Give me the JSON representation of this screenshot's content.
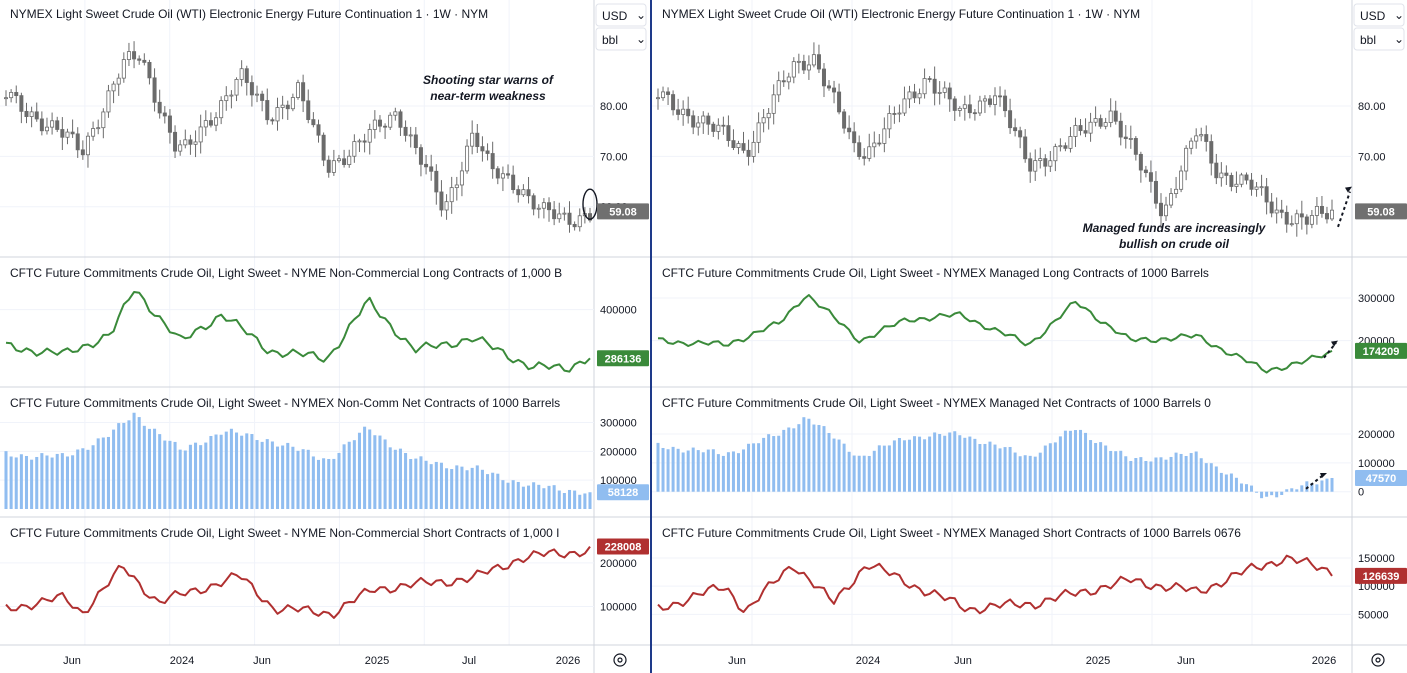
{
  "left": {
    "price_title": "NYMEX Light Sweet Crude Oil (WTI) Electronic Energy Future Continuation 1 · 1W · NYM",
    "currency": "USD",
    "unit": "bbl",
    "annotation_lines": [
      "Shooting star warns of",
      "near-term weakness"
    ],
    "last_price": "59.08",
    "price_ticks": [
      "80.00",
      "70.00",
      "60.00"
    ],
    "long_title": "CFTC Future Commitments Crude Oil, Light Sweet - NYME Non-Commercial Long Contracts of 1,000 B",
    "long_last": "286136",
    "long_ticks": [
      "400000"
    ],
    "net_title": "CFTC Future Commitments Crude Oil, Light Sweet - NYMEX Non-Comm Net Contracts of 1000 Barrels",
    "net_last": "58128",
    "net_ticks": [
      "300000",
      "200000",
      "100000"
    ],
    "short_title": "CFTC Future Commitments Crude Oil, Light Sweet - NYME Non-Commercial Short Contracts of 1,000 I",
    "short_last": "228008",
    "short_ticks": [
      "200000",
      "100000"
    ],
    "x_labels": [
      "Jun",
      "2024",
      "Jun",
      "2025",
      "Jul",
      "2026"
    ]
  },
  "right": {
    "price_title": "NYMEX Light Sweet Crude Oil (WTI) Electronic Energy Future Continuation 1 · 1W · NYM",
    "currency": "USD",
    "unit": "bbl",
    "annotation_lines": [
      "Managed funds are increasingly",
      "bullish on crude oil"
    ],
    "last_price": "59.08",
    "price_ticks": [
      "80.00",
      "70.00"
    ],
    "long_title": "CFTC Future Commitments Crude Oil, Light Sweet - NYMEX Managed Long Contracts of 1000 Barrels",
    "long_last": "174209",
    "long_ticks": [
      "300000",
      "200000"
    ],
    "net_title": "CFTC Future Commitments Crude Oil, Light Sweet - NYMEX Managed Net Contracts of 1000 Barrels 0",
    "net_last": "47570",
    "net_ticks": [
      "200000",
      "100000",
      "0"
    ],
    "short_title": "CFTC Future Commitments Crude Oil, Light Sweet - NYMEX Managed Short Contracts of 1000 Barrels 0676",
    "short_last": "126639",
    "short_ticks": [
      "150000",
      "100000",
      "50000"
    ],
    "x_labels": [
      "Jun",
      "2024",
      "Jun",
      "2025",
      "Jun",
      "2026"
    ]
  },
  "colors": {
    "candle": "#6b6b6b",
    "long_line": "#3a8a3a",
    "net_bars": "#90bdf0",
    "short_line": "#b03030",
    "price_badge": "#707070",
    "long_badge": "#3a8a3a",
    "net_badge": "#90bdf0",
    "short_badge": "#b03030",
    "divider": "#1e3a8a"
  },
  "chart_data": [
    {
      "type": "line",
      "title": "NYMEX Light Sweet Crude Oil (WTI) Electronic Energy Future Continuation 1 · 1W · NYM",
      "x": [
        "2023-04",
        "2023-06",
        "2023-07",
        "2023-09",
        "2023-10",
        "2023-12",
        "2024-01",
        "2024-04",
        "2024-06",
        "2024-07",
        "2024-09",
        "2024-10",
        "2025-01",
        "2025-03",
        "2025-04",
        "2025-06",
        "2025-07",
        "2025-09",
        "2025-10",
        "2025-12",
        "2026-01"
      ],
      "values": [
        82,
        74,
        71,
        88,
        90,
        72,
        71,
        86,
        78,
        83,
        68,
        72,
        79,
        67,
        59,
        75,
        67,
        64,
        59,
        57,
        59.08
      ],
      "ylabel": "USD/bbl"
    },
    {
      "type": "line",
      "title": "CFTC Future Commitments Crude Oil, Light Sweet - NYME Non-Commercial Long Contracts of 1,000 B",
      "x": [
        "2023-04",
        "2023-06",
        "2023-09",
        "2023-10",
        "2024-01",
        "2024-04",
        "2024-06",
        "2024-10",
        "2025-01",
        "2025-04",
        "2025-07",
        "2025-10",
        "2026-01"
      ],
      "values": [
        310000,
        290000,
        340000,
        450000,
        320000,
        390000,
        300000,
        280000,
        420000,
        300000,
        330000,
        260000,
        286136
      ]
    },
    {
      "type": "bar",
      "title": "CFTC Future Commitments Crude Oil, Light Sweet - NYMEX Non-Comm Net Contracts of 1000 Barrels",
      "x": [
        "2023-04",
        "2023-06",
        "2023-09",
        "2023-10",
        "2024-01",
        "2024-04",
        "2024-07",
        "2024-10",
        "2025-01",
        "2025-04",
        "2025-07",
        "2025-10",
        "2026-01"
      ],
      "values": [
        190000,
        180000,
        260000,
        330000,
        200000,
        270000,
        240000,
        170000,
        280000,
        170000,
        140000,
        80000,
        58128
      ]
    },
    {
      "type": "line",
      "title": "CFTC Future Commitments Crude Oil, Light Sweet - NYME Non-Commercial Short Contracts of 1,000 I",
      "x": [
        "2023-04",
        "2023-06",
        "2023-07",
        "2023-09",
        "2023-11",
        "2024-01",
        "2024-04",
        "2024-07",
        "2024-10",
        "2025-01",
        "2025-04",
        "2025-07",
        "2025-10",
        "2025-11",
        "2026-01"
      ],
      "values": [
        95000,
        120000,
        85000,
        190000,
        110000,
        130000,
        170000,
        95000,
        85000,
        140000,
        150000,
        165000,
        210000,
        220000,
        228008
      ]
    },
    {
      "type": "line",
      "title": "CFTC Future Commitments Crude Oil, Light Sweet - NYMEX Managed Long Contracts of 1000 Barrels",
      "x": [
        "2023-04",
        "2023-06",
        "2023-09",
        "2023-10",
        "2024-01",
        "2024-04",
        "2024-06",
        "2024-10",
        "2025-01",
        "2025-04",
        "2025-07",
        "2025-10",
        "2026-01"
      ],
      "values": [
        200000,
        190000,
        240000,
        310000,
        200000,
        250000,
        260000,
        190000,
        290000,
        200000,
        210000,
        130000,
        174209
      ]
    },
    {
      "type": "bar",
      "title": "CFTC Future Commitments Crude Oil, Light Sweet - NYMEX Managed Net Contracts of 1000 Barrels 0",
      "x": [
        "2023-04",
        "2023-06",
        "2023-09",
        "2023-10",
        "2024-01",
        "2024-04",
        "2024-07",
        "2024-10",
        "2025-01",
        "2025-04",
        "2025-07",
        "2025-10",
        "2026-01"
      ],
      "values": [
        160000,
        130000,
        200000,
        260000,
        120000,
        190000,
        200000,
        120000,
        220000,
        110000,
        130000,
        -20000,
        47570
      ]
    },
    {
      "type": "line",
      "title": "CFTC Future Commitments Crude Oil, Light Sweet - NYMEX Managed Short Contracts of 1000 Barrels 0676",
      "x": [
        "2023-04",
        "2023-06",
        "2023-07",
        "2023-09",
        "2023-11",
        "2024-01",
        "2024-04",
        "2024-07",
        "2024-10",
        "2025-01",
        "2025-04",
        "2025-07",
        "2025-10",
        "2025-11",
        "2026-01"
      ],
      "values": [
        60000,
        100000,
        55000,
        140000,
        70000,
        140000,
        90000,
        60000,
        70000,
        90000,
        110000,
        90000,
        130000,
        150000,
        126639
      ]
    }
  ]
}
